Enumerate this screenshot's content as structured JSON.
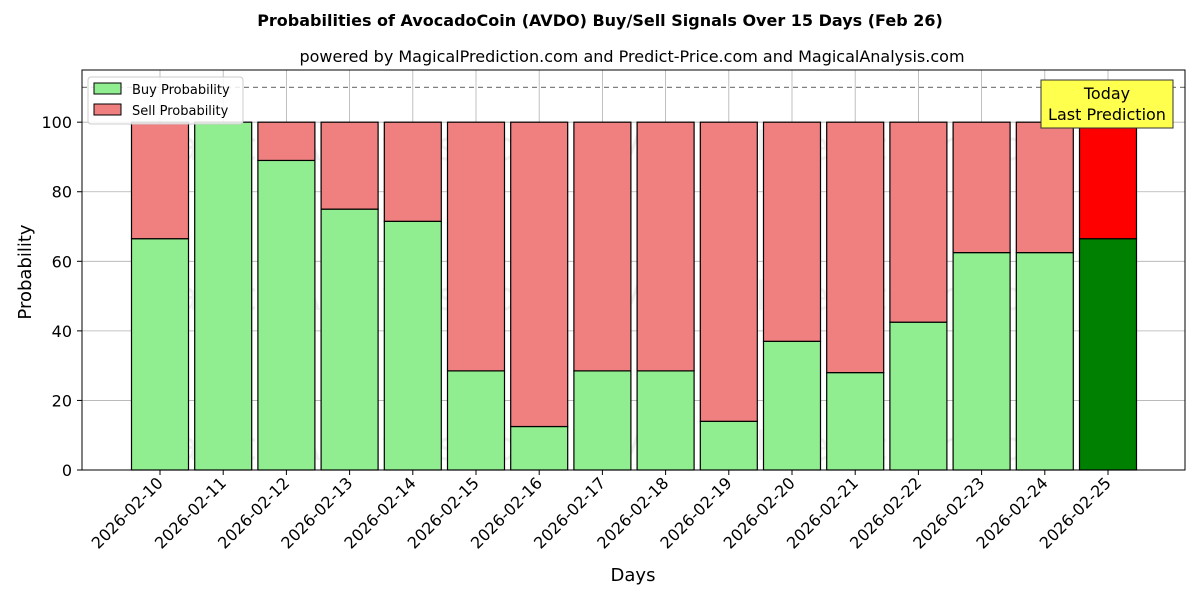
{
  "chart_data": {
    "type": "bar",
    "title": "Probabilities of AvocadoCoin (AVDO) Buy/Sell Signals Over 15 Days (Feb 26)",
    "subtitle": "powered by MagicalPrediction.com and Predict-Price.com and MagicalAnalysis.com",
    "xlabel": "Days",
    "ylabel": "Probability",
    "ylim": [
      0,
      115
    ],
    "yticks": [
      0,
      20,
      40,
      60,
      80,
      100
    ],
    "stacked": true,
    "grid": true,
    "legend_position": "top-left",
    "reference_line": 110,
    "categories": [
      "2026-02-10",
      "2026-02-11",
      "2026-02-12",
      "2026-02-13",
      "2026-02-14",
      "2026-02-15",
      "2026-02-16",
      "2026-02-17",
      "2026-02-18",
      "2026-02-19",
      "2026-02-20",
      "2026-02-21",
      "2026-02-22",
      "2026-02-23",
      "2026-02-24",
      "2026-02-25"
    ],
    "series": [
      {
        "name": "Buy Probability",
        "color": "#90ee90",
        "highlight_color": "#008000",
        "values": [
          66.5,
          100,
          89,
          75,
          71.5,
          28.5,
          12.5,
          28.5,
          28.5,
          14,
          37,
          28,
          42.5,
          62.5,
          62.5,
          66.5
        ]
      },
      {
        "name": "Sell Probability",
        "color": "#f08080",
        "highlight_color": "#ff0000",
        "values": [
          33.5,
          0,
          11,
          25,
          28.5,
          71.5,
          87.5,
          71.5,
          71.5,
          86,
          63,
          72,
          57.5,
          37.5,
          37.5,
          33.5
        ]
      }
    ],
    "highlight_index": 15,
    "annotation": {
      "lines": [
        "Today",
        "Last Prediction"
      ],
      "color": "#ffff4d"
    },
    "watermarks": [
      "MagicalAnalysis.com",
      "MagicalPrediction.com"
    ]
  }
}
